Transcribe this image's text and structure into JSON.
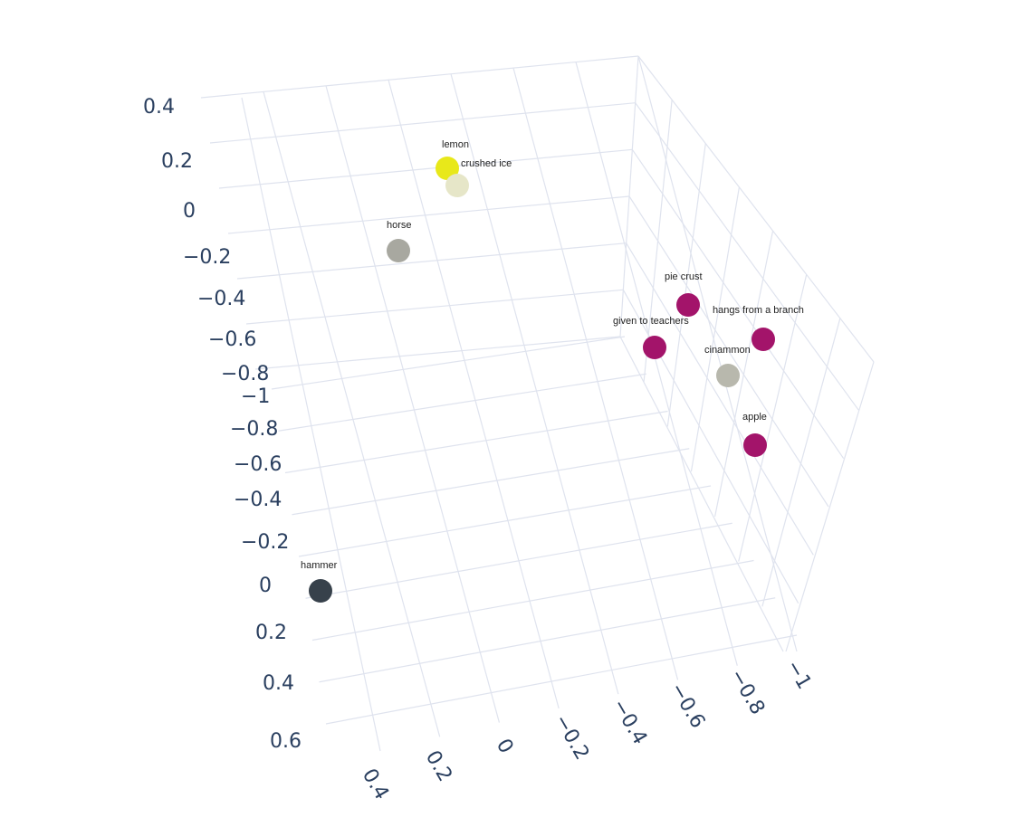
{
  "chart_data": {
    "type": "scatter3d",
    "title": "",
    "axes": {
      "left_vertical_ticks": [
        "0.4",
        "0.2",
        "0",
        "−0.2",
        "−0.4",
        "−0.6",
        "−0.8"
      ],
      "left_depth_ticks": [
        "−1",
        "−0.8",
        "−0.6",
        "−0.4",
        "−0.2",
        "0",
        "0.2",
        "0.4",
        "0.6"
      ],
      "bottom_ticks": [
        "0.4",
        "0.2",
        "0",
        "−0.2",
        "−0.4",
        "−0.6",
        "−0.8",
        "−1"
      ]
    },
    "points": [
      {
        "label": "lemon",
        "color": "#e8e81a"
      },
      {
        "label": "crushed ice",
        "color": "#e6e6c8"
      },
      {
        "label": "horse",
        "color": "#a8a8a0"
      },
      {
        "label": "pie crust",
        "color": "#a3146a"
      },
      {
        "label": "hangs from a branch",
        "color": "#a3146a"
      },
      {
        "label": "given to teachers",
        "color": "#a3146a"
      },
      {
        "label": "cinammon",
        "color": "#b8b8ad"
      },
      {
        "label": "apple",
        "color": "#a3146a"
      },
      {
        "label": "hammer",
        "color": "#37414b"
      }
    ]
  }
}
